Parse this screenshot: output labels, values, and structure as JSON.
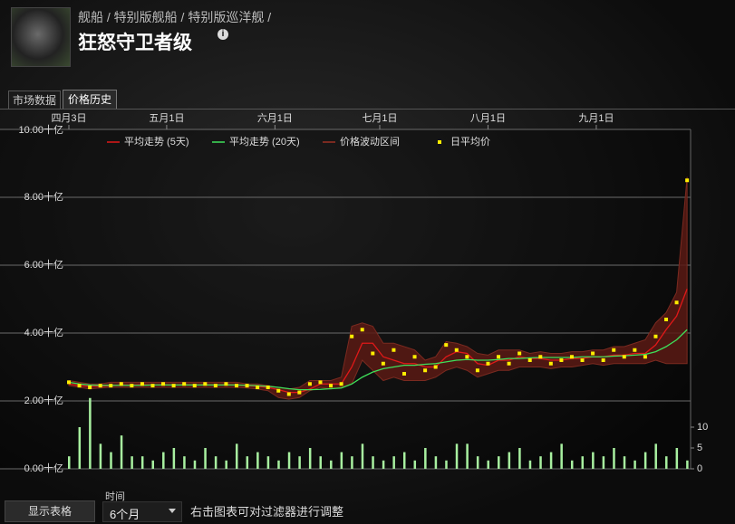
{
  "header": {
    "breadcrumb": "舰船 / 特别版舰船 / 特别版巡洋舰 /",
    "title": "狂怒守卫者级"
  },
  "tabs": [
    "市场数据",
    "价格历史"
  ],
  "chart_data": {
    "type": "line",
    "x": [
      0,
      3,
      6,
      9,
      12,
      15,
      18,
      21,
      24,
      27,
      30,
      33,
      36,
      39,
      42,
      45,
      48,
      51,
      54,
      57,
      60,
      63,
      66,
      69,
      72,
      75,
      78,
      81,
      84,
      87,
      90,
      93,
      96,
      99,
      102,
      105,
      108,
      111,
      114,
      117,
      120,
      123,
      126,
      129,
      132,
      135,
      138,
      141,
      144,
      147,
      150,
      153,
      156,
      159,
      162,
      165,
      168,
      171,
      174,
      177
    ],
    "xlim": [
      0,
      178
    ],
    "xticks": [
      {
        "value": 0,
        "label": "四月3日"
      },
      {
        "value": 28,
        "label": "五月1日"
      },
      {
        "value": 59,
        "label": "六月1日"
      },
      {
        "value": 89,
        "label": "七月1日"
      },
      {
        "value": 120,
        "label": "八月1日"
      },
      {
        "value": 151,
        "label": "九月1日"
      }
    ],
    "ylim": [
      0,
      10
    ],
    "yticks": [
      {
        "value": 0,
        "label": "0.00十亿"
      },
      {
        "value": 2,
        "label": "2.00十亿"
      },
      {
        "value": 4,
        "label": "4.00十亿"
      },
      {
        "value": 6,
        "label": "6.00十亿"
      },
      {
        "value": 8,
        "label": "8.00十亿"
      },
      {
        "value": 10,
        "label": "10.00十亿"
      }
    ],
    "y2lim": [
      0,
      81.5
    ],
    "y2ticks": [
      0,
      5,
      10
    ],
    "grid": true,
    "series": [
      {
        "name": "平均走势 (5天)",
        "color": "#e01818",
        "values": [
          2.5,
          2.45,
          2.43,
          2.43,
          2.45,
          2.47,
          2.47,
          2.48,
          2.47,
          2.48,
          2.47,
          2.48,
          2.47,
          2.48,
          2.47,
          2.48,
          2.47,
          2.45,
          2.43,
          2.4,
          2.33,
          2.25,
          2.25,
          2.35,
          2.5,
          2.5,
          2.5,
          3.0,
          3.7,
          3.7,
          3.3,
          3.2,
          3.1,
          3.1,
          3.0,
          3.0,
          3.3,
          3.45,
          3.4,
          3.1,
          3.05,
          3.2,
          3.2,
          3.3,
          3.25,
          3.25,
          3.2,
          3.2,
          3.25,
          3.25,
          3.3,
          3.3,
          3.35,
          3.35,
          3.4,
          3.4,
          3.65,
          4.1,
          4.5,
          5.3
        ]
      },
      {
        "name": "平均走势 (20天)",
        "color": "#3ee05a",
        "values": [
          2.55,
          2.5,
          2.47,
          2.46,
          2.46,
          2.46,
          2.46,
          2.46,
          2.47,
          2.47,
          2.47,
          2.47,
          2.47,
          2.47,
          2.47,
          2.47,
          2.47,
          2.46,
          2.45,
          2.43,
          2.4,
          2.36,
          2.33,
          2.33,
          2.34,
          2.36,
          2.38,
          2.5,
          2.7,
          2.85,
          2.95,
          3.0,
          3.05,
          3.05,
          3.08,
          3.1,
          3.15,
          3.2,
          3.22,
          3.2,
          3.2,
          3.22,
          3.25,
          3.25,
          3.27,
          3.28,
          3.28,
          3.28,
          3.28,
          3.3,
          3.3,
          3.3,
          3.32,
          3.33,
          3.35,
          3.37,
          3.45,
          3.6,
          3.8,
          4.1
        ]
      },
      {
        "name": "日平均价",
        "color": "#ffee00",
        "marker": "square",
        "values": [
          2.55,
          2.45,
          2.4,
          2.45,
          2.45,
          2.5,
          2.45,
          2.5,
          2.45,
          2.5,
          2.45,
          2.5,
          2.45,
          2.5,
          2.45,
          2.5,
          2.45,
          2.45,
          2.4,
          2.4,
          2.3,
          2.2,
          2.25,
          2.5,
          2.55,
          2.45,
          2.5,
          3.9,
          4.1,
          3.4,
          3.1,
          3.5,
          2.8,
          3.3,
          2.9,
          3.0,
          3.65,
          3.5,
          3.3,
          2.9,
          3.1,
          3.3,
          3.1,
          3.4,
          3.2,
          3.3,
          3.1,
          3.2,
          3.3,
          3.2,
          3.4,
          3.2,
          3.5,
          3.3,
          3.5,
          3.3,
          3.9,
          4.4,
          4.9,
          8.5
        ]
      }
    ],
    "band": {
      "name": "价格波动区间",
      "color": "#5a1a14",
      "high": [
        2.6,
        2.55,
        2.5,
        2.5,
        2.55,
        2.55,
        2.55,
        2.55,
        2.55,
        2.55,
        2.55,
        2.55,
        2.55,
        2.55,
        2.55,
        2.55,
        2.55,
        2.5,
        2.5,
        2.45,
        2.4,
        2.35,
        2.4,
        2.6,
        2.6,
        2.6,
        2.7,
        4.2,
        4.3,
        4.2,
        3.7,
        3.7,
        3.6,
        3.5,
        3.2,
        3.3,
        3.75,
        3.7,
        3.6,
        3.4,
        3.35,
        3.5,
        3.5,
        3.5,
        3.4,
        3.45,
        3.4,
        3.4,
        3.45,
        3.45,
        3.5,
        3.5,
        3.6,
        3.6,
        3.7,
        3.8,
        4.3,
        4.6,
        5.2,
        8.6
      ],
      "low": [
        2.45,
        2.4,
        2.35,
        2.38,
        2.4,
        2.4,
        2.4,
        2.4,
        2.4,
        2.4,
        2.4,
        2.4,
        2.4,
        2.4,
        2.4,
        2.4,
        2.4,
        2.38,
        2.35,
        2.3,
        2.1,
        2.05,
        2.1,
        2.3,
        2.4,
        2.35,
        2.4,
        2.5,
        3.2,
        2.9,
        2.6,
        2.7,
        2.6,
        2.6,
        2.6,
        2.7,
        2.9,
        3.0,
        2.9,
        2.7,
        2.8,
        2.9,
        2.9,
        3.0,
        3.0,
        3.0,
        2.95,
        3.0,
        3.0,
        3.05,
        3.1,
        3.05,
        3.1,
        3.1,
        3.1,
        3.1,
        3.2,
        3.1,
        3.1,
        3.1
      ]
    },
    "volume": {
      "axis": "y2",
      "color": "#a8f0a0",
      "values": [
        3,
        10,
        17,
        6,
        4,
        8,
        3,
        3,
        2,
        4,
        5,
        3,
        2,
        5,
        3,
        2,
        6,
        3,
        4,
        3,
        2,
        4,
        3,
        5,
        3,
        2,
        4,
        3,
        6,
        3,
        2,
        3,
        4,
        2,
        5,
        3,
        2,
        6,
        6,
        3,
        2,
        3,
        4,
        5,
        2,
        3,
        4,
        6,
        2,
        3,
        4,
        3,
        5,
        3,
        2,
        4,
        6,
        3,
        5,
        2
      ]
    }
  },
  "controls": {
    "button": "显示表格",
    "period_label": "时间",
    "period": "6个月",
    "hint": "右击图表可对过滤器进行调整"
  }
}
